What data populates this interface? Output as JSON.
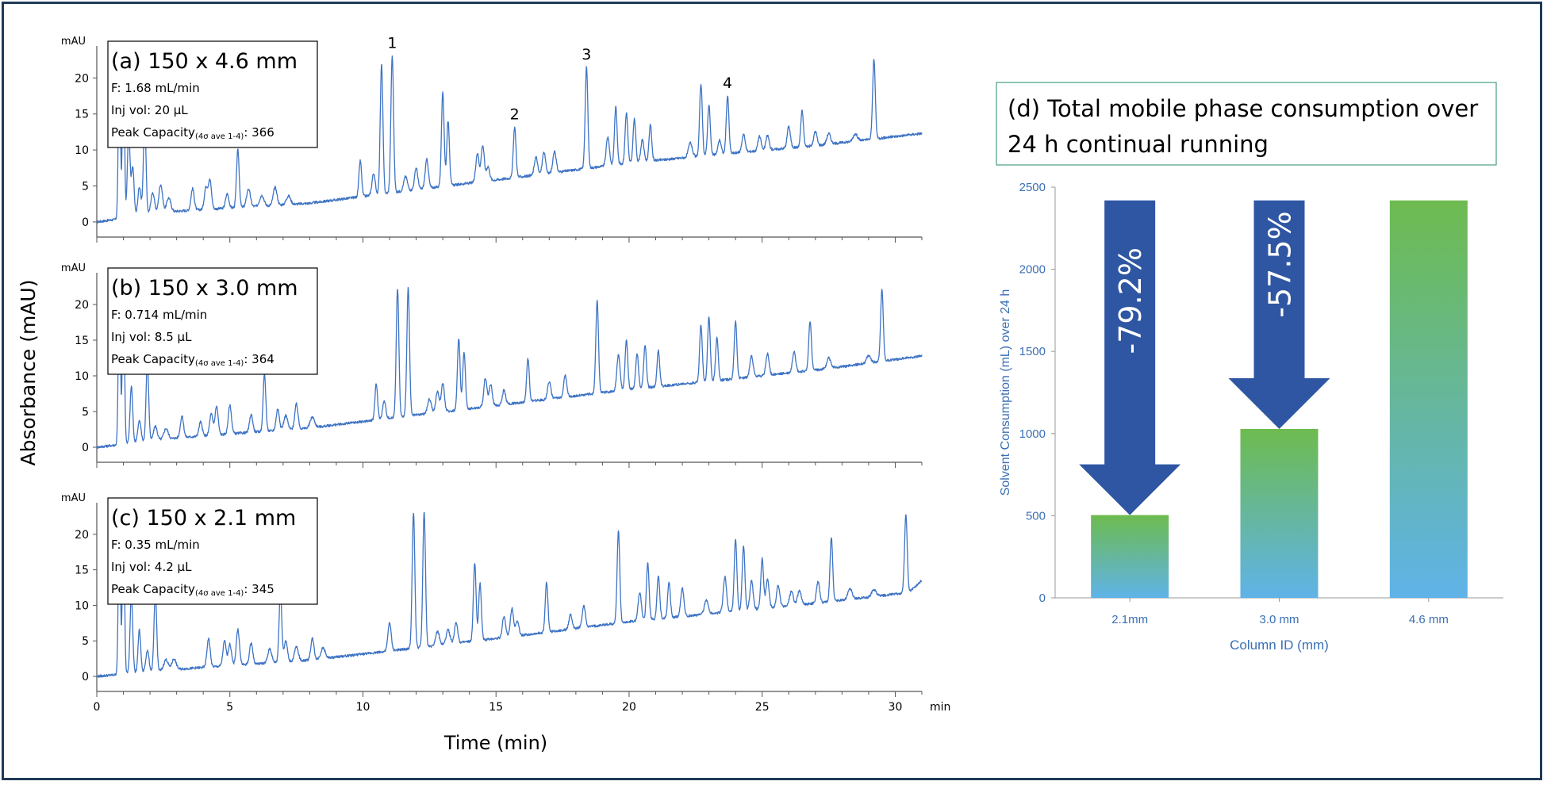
{
  "colors": {
    "trace": "#3f74c4",
    "axis_text_blue": "#3a6fb5",
    "arrow": "#2f56a3",
    "bar_top": "#6dbb4f",
    "bar_bottom": "#5fb3e8",
    "title_border": "#4a9e7c",
    "frame": "#1f3b56"
  },
  "chart_data": [
    {
      "type": "line",
      "panel": "a",
      "title": "(a) 150 x 4.6 mm",
      "info": {
        "flow": "F: 1.68 mL/min",
        "inj": "Inj vol: 20 µL",
        "pc_label": "Peak Capacity",
        "pc_sub": "(4σ ave 1-4)",
        "pc_value": ": 366"
      },
      "yunit": "mAU",
      "yticks": [
        "0",
        "5",
        "10",
        "15",
        "20"
      ],
      "ylim": [
        -1,
        24
      ],
      "xlim": [
        0,
        31
      ],
      "peak_labels": [
        {
          "text": "1",
          "x": 11.1
        },
        {
          "text": "2",
          "x": 15.7
        },
        {
          "text": "3",
          "x": 18.4
        },
        {
          "text": "4",
          "x": 23.7
        }
      ],
      "baseline": [
        [
          0,
          0
        ],
        [
          3,
          1.5
        ],
        [
          8,
          2.6
        ],
        [
          12,
          4.5
        ],
        [
          16,
          6.3
        ],
        [
          20,
          8.2
        ],
        [
          24,
          9.6
        ],
        [
          27,
          10.6
        ],
        [
          31,
          12.3
        ]
      ],
      "peaks": [
        [
          0.85,
          24,
          0.04
        ],
        [
          1.0,
          24,
          0.04
        ],
        [
          1.2,
          12,
          0.05
        ],
        [
          1.35,
          7,
          0.05
        ],
        [
          1.6,
          4,
          0.06
        ],
        [
          1.8,
          13,
          0.05
        ],
        [
          2.1,
          3,
          0.07
        ],
        [
          2.4,
          4,
          0.07
        ],
        [
          2.7,
          2,
          0.08
        ],
        [
          3.6,
          3,
          0.06
        ],
        [
          4.1,
          3,
          0.06
        ],
        [
          4.25,
          4,
          0.06
        ],
        [
          4.9,
          2,
          0.06
        ],
        [
          5.3,
          8,
          0.05
        ],
        [
          5.7,
          2.5,
          0.07
        ],
        [
          6.2,
          1.5,
          0.08
        ],
        [
          6.7,
          2.5,
          0.07
        ],
        [
          7.2,
          1.2,
          0.08
        ],
        [
          9.9,
          5,
          0.05
        ],
        [
          10.4,
          3,
          0.06
        ],
        [
          10.7,
          18,
          0.05
        ],
        [
          11.1,
          19,
          0.05
        ],
        [
          11.6,
          2,
          0.07
        ],
        [
          12.0,
          3,
          0.06
        ],
        [
          12.4,
          4,
          0.06
        ],
        [
          13.0,
          13,
          0.05
        ],
        [
          13.2,
          9,
          0.05
        ],
        [
          14.3,
          4,
          0.06
        ],
        [
          14.5,
          5,
          0.06
        ],
        [
          14.7,
          2,
          0.06
        ],
        [
          15.7,
          7,
          0.05
        ],
        [
          16.5,
          2.5,
          0.06
        ],
        [
          16.8,
          3,
          0.06
        ],
        [
          17.2,
          3,
          0.06
        ],
        [
          18.4,
          14,
          0.05
        ],
        [
          19.2,
          4,
          0.06
        ],
        [
          19.5,
          8,
          0.05
        ],
        [
          19.9,
          7,
          0.05
        ],
        [
          20.2,
          6,
          0.05
        ],
        [
          20.5,
          3,
          0.06
        ],
        [
          20.8,
          5,
          0.05
        ],
        [
          22.3,
          2,
          0.07
        ],
        [
          22.7,
          10,
          0.05
        ],
        [
          23.0,
          7,
          0.05
        ],
        [
          23.4,
          2,
          0.06
        ],
        [
          23.7,
          8,
          0.05
        ],
        [
          24.3,
          2.5,
          0.06
        ],
        [
          24.9,
          2,
          0.06
        ],
        [
          25.2,
          2,
          0.06
        ],
        [
          26.0,
          3,
          0.06
        ],
        [
          26.5,
          5,
          0.05
        ],
        [
          27.0,
          2,
          0.06
        ],
        [
          27.5,
          1.5,
          0.07
        ],
        [
          28.5,
          1,
          0.08
        ],
        [
          29.2,
          11,
          0.05
        ]
      ]
    },
    {
      "type": "line",
      "panel": "b",
      "title": "(b) 150 x 3.0 mm",
      "info": {
        "flow": "F: 0.714 mL/min",
        "inj": "Inj vol: 8.5 µL",
        "pc_label": "Peak Capacity",
        "pc_sub": "(4σ ave 1-4)",
        "pc_value": ": 364"
      },
      "yunit": "mAU",
      "yticks": [
        "0",
        "5",
        "10",
        "15",
        "20"
      ],
      "ylim": [
        -1,
        24
      ],
      "xlim": [
        0,
        31
      ],
      "baseline": [
        [
          0,
          0
        ],
        [
          3,
          1.3
        ],
        [
          8,
          2.7
        ],
        [
          12,
          4.5
        ],
        [
          16,
          6.3
        ],
        [
          20,
          8.1
        ],
        [
          24,
          9.6
        ],
        [
          27,
          10.8
        ],
        [
          31,
          12.8
        ]
      ],
      "peaks": [
        [
          0.85,
          24,
          0.04
        ],
        [
          1.0,
          24,
          0.04
        ],
        [
          1.3,
          8,
          0.05
        ],
        [
          1.6,
          3,
          0.06
        ],
        [
          1.9,
          11,
          0.05
        ],
        [
          2.2,
          2,
          0.07
        ],
        [
          2.6,
          1.5,
          0.08
        ],
        [
          3.2,
          3,
          0.06
        ],
        [
          3.9,
          2,
          0.06
        ],
        [
          4.3,
          3,
          0.06
        ],
        [
          4.5,
          4,
          0.06
        ],
        [
          5.0,
          4,
          0.06
        ],
        [
          5.8,
          2.5,
          0.06
        ],
        [
          6.3,
          8,
          0.05
        ],
        [
          6.8,
          3,
          0.06
        ],
        [
          7.1,
          2,
          0.07
        ],
        [
          7.5,
          3.5,
          0.06
        ],
        [
          8.1,
          1.5,
          0.08
        ],
        [
          10.5,
          5,
          0.05
        ],
        [
          10.8,
          2.5,
          0.06
        ],
        [
          11.3,
          18,
          0.05
        ],
        [
          11.7,
          18,
          0.05
        ],
        [
          12.5,
          2,
          0.07
        ],
        [
          12.8,
          3,
          0.06
        ],
        [
          13.0,
          4,
          0.06
        ],
        [
          13.6,
          10,
          0.05
        ],
        [
          13.8,
          8,
          0.05
        ],
        [
          14.6,
          4,
          0.06
        ],
        [
          14.8,
          3,
          0.06
        ],
        [
          15.3,
          2,
          0.06
        ],
        [
          16.2,
          6,
          0.05
        ],
        [
          17.0,
          2.5,
          0.06
        ],
        [
          17.6,
          3,
          0.06
        ],
        [
          18.8,
          13,
          0.05
        ],
        [
          19.6,
          5,
          0.06
        ],
        [
          19.9,
          7,
          0.05
        ],
        [
          20.3,
          5,
          0.05
        ],
        [
          20.6,
          6,
          0.05
        ],
        [
          21.1,
          5,
          0.05
        ],
        [
          22.7,
          8,
          0.05
        ],
        [
          23.0,
          9,
          0.05
        ],
        [
          23.3,
          6,
          0.05
        ],
        [
          24.0,
          8,
          0.05
        ],
        [
          24.6,
          3,
          0.06
        ],
        [
          25.2,
          3,
          0.06
        ],
        [
          26.2,
          3,
          0.06
        ],
        [
          26.8,
          7,
          0.05
        ],
        [
          27.5,
          1.5,
          0.07
        ],
        [
          29.0,
          1,
          0.08
        ],
        [
          29.5,
          10,
          0.05
        ]
      ]
    },
    {
      "type": "line",
      "panel": "c",
      "title": "(c) 150 x 2.1 mm",
      "info": {
        "flow": "F: 0.35 mL/min",
        "inj": "Inj vol: 4.2 µL",
        "pc_label": "Peak Capacity",
        "pc_sub": "(4σ ave 1-4)",
        "pc_value": ": 345"
      },
      "yunit": "mAU",
      "yticks": [
        "0",
        "5",
        "10",
        "15",
        "20"
      ],
      "ylim": [
        -1,
        24
      ],
      "xlim": [
        0,
        31
      ],
      "xticks": [
        "0",
        "5",
        "10",
        "15",
        "20",
        "25",
        "30"
      ],
      "xunit": "min",
      "baseline": [
        [
          0,
          0
        ],
        [
          3,
          1.0
        ],
        [
          8,
          2.3
        ],
        [
          12,
          4.0
        ],
        [
          16,
          5.8
        ],
        [
          20,
          7.7
        ],
        [
          24,
          9.2
        ],
        [
          27,
          10.3
        ],
        [
          30.5,
          11.8
        ],
        [
          31,
          13.5
        ]
      ],
      "peaks": [
        [
          0.85,
          24,
          0.04
        ],
        [
          1.0,
          24,
          0.04
        ],
        [
          1.3,
          11,
          0.05
        ],
        [
          1.6,
          6,
          0.05
        ],
        [
          1.9,
          3,
          0.06
        ],
        [
          2.2,
          11,
          0.05
        ],
        [
          2.6,
          1.5,
          0.08
        ],
        [
          2.9,
          1.5,
          0.08
        ],
        [
          4.2,
          4,
          0.06
        ],
        [
          4.8,
          3.5,
          0.06
        ],
        [
          5.0,
          3,
          0.06
        ],
        [
          5.3,
          5,
          0.06
        ],
        [
          5.8,
          3,
          0.06
        ],
        [
          6.5,
          2,
          0.07
        ],
        [
          6.9,
          10,
          0.05
        ],
        [
          7.1,
          3,
          0.06
        ],
        [
          7.5,
          2,
          0.07
        ],
        [
          8.1,
          3,
          0.06
        ],
        [
          8.5,
          1.5,
          0.08
        ],
        [
          11.0,
          4,
          0.06
        ],
        [
          11.9,
          19,
          0.05
        ],
        [
          12.3,
          19,
          0.05
        ],
        [
          12.8,
          2,
          0.07
        ],
        [
          13.2,
          2,
          0.07
        ],
        [
          13.5,
          3,
          0.06
        ],
        [
          14.2,
          11,
          0.05
        ],
        [
          14.4,
          8,
          0.05
        ],
        [
          15.3,
          3,
          0.06
        ],
        [
          15.6,
          4,
          0.06
        ],
        [
          15.8,
          2,
          0.06
        ],
        [
          16.9,
          7,
          0.05
        ],
        [
          17.8,
          2,
          0.06
        ],
        [
          18.3,
          3,
          0.06
        ],
        [
          19.6,
          13,
          0.05
        ],
        [
          20.4,
          4,
          0.06
        ],
        [
          20.7,
          8,
          0.05
        ],
        [
          21.1,
          6,
          0.05
        ],
        [
          21.5,
          5,
          0.05
        ],
        [
          22.0,
          4,
          0.06
        ],
        [
          22.9,
          2,
          0.07
        ],
        [
          23.6,
          5,
          0.06
        ],
        [
          24.0,
          10,
          0.05
        ],
        [
          24.3,
          9,
          0.05
        ],
        [
          24.6,
          4,
          0.06
        ],
        [
          25.0,
          7,
          0.05
        ],
        [
          25.2,
          4,
          0.06
        ],
        [
          25.6,
          3,
          0.06
        ],
        [
          26.1,
          2,
          0.07
        ],
        [
          26.4,
          2,
          0.07
        ],
        [
          27.1,
          3,
          0.06
        ],
        [
          27.6,
          9,
          0.05
        ],
        [
          28.3,
          1.5,
          0.08
        ],
        [
          29.2,
          1,
          0.08
        ],
        [
          30.4,
          11,
          0.05
        ]
      ]
    },
    {
      "type": "bar",
      "panel": "d",
      "title_line1": "(d) Total mobile phase consumption over",
      "title_line2": "24 h continual running",
      "categories": [
        "2.1mm",
        "3.0 mm",
        "4.6 mm"
      ],
      "values": [
        504,
        1028,
        2419
      ],
      "xlabel": "Column ID (mm)",
      "ylabel": "Solvent Consumption (mL) over 24 h",
      "ylim": [
        0,
        2500
      ],
      "yticks": [
        "0",
        "500",
        "1000",
        "1500",
        "2000",
        "2500"
      ],
      "reductions": [
        {
          "label": "-79.2%",
          "bar": 0
        },
        {
          "label": "-57.5%",
          "bar": 1
        }
      ]
    }
  ],
  "shared": {
    "ylabel": "Absorbance (mAU)",
    "xlabel": "Time (min)"
  }
}
